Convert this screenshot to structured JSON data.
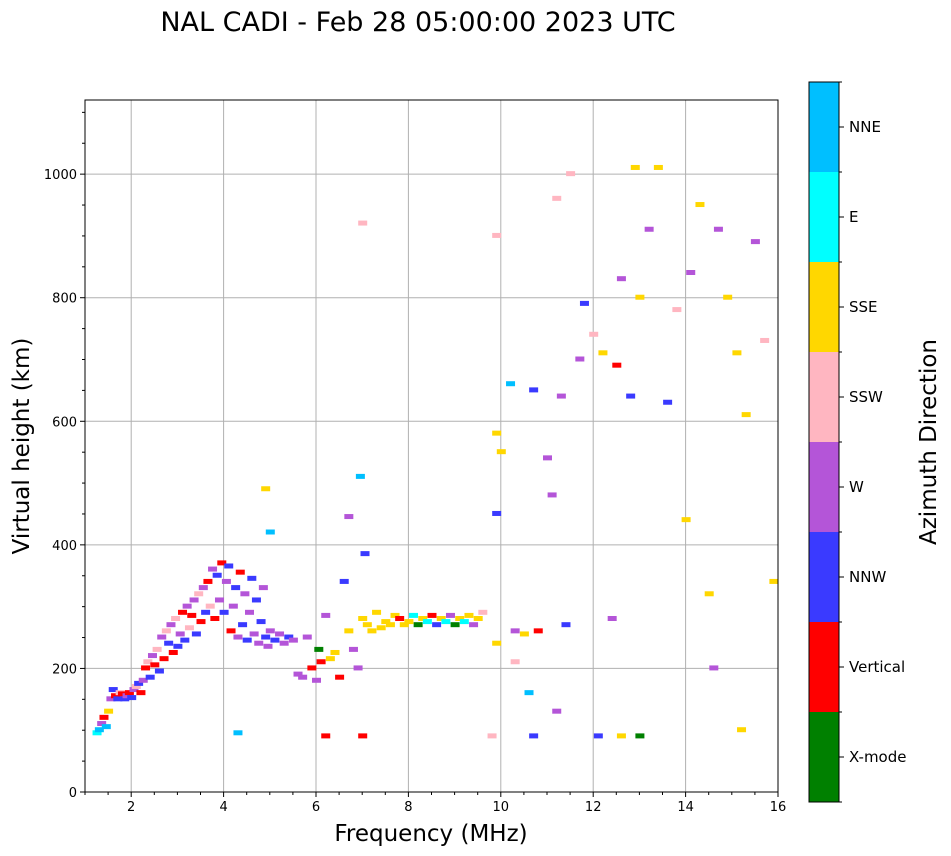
{
  "chart_data": {
    "type": "scatter",
    "title": "NAL CADI - Feb 28 05:00:00 2023 UTC",
    "xlabel": "Frequency (MHz)",
    "ylabel": "Virtual height (km)",
    "xlim": [
      1,
      16
    ],
    "ylim": [
      0,
      1120
    ],
    "xticks": [
      2,
      4,
      6,
      8,
      10,
      12,
      14,
      16
    ],
    "yticks": [
      0,
      200,
      400,
      600,
      800,
      1000
    ],
    "grid": true,
    "colorbar": {
      "label": "Azimuth Direction",
      "categories": [
        {
          "name": "X-mode",
          "color": "#008000"
        },
        {
          "name": "Vertical",
          "color": "#ff0000"
        },
        {
          "name": "NNW",
          "color": "#3a3aff"
        },
        {
          "name": "W",
          "color": "#b455d8"
        },
        {
          "name": "SSW",
          "color": "#ffb6c1"
        },
        {
          "name": "SSE",
          "color": "#ffd700"
        },
        {
          "name": "E",
          "color": "#00ffff"
        },
        {
          "name": "NNE",
          "color": "#00bfff"
        }
      ]
    },
    "points": [
      [
        1.25,
        95,
        "E"
      ],
      [
        1.3,
        100,
        "NNE"
      ],
      [
        1.35,
        110,
        "W"
      ],
      [
        1.4,
        120,
        "Vertical"
      ],
      [
        1.45,
        105,
        "NNE"
      ],
      [
        1.5,
        130,
        "SSE"
      ],
      [
        1.55,
        150,
        "W"
      ],
      [
        1.6,
        165,
        "NNW"
      ],
      [
        1.65,
        155,
        "Vertical"
      ],
      [
        1.7,
        150,
        "NNW"
      ],
      [
        1.75,
        160,
        "SSW"
      ],
      [
        1.8,
        158,
        "Vertical"
      ],
      [
        1.85,
        150,
        "NNW"
      ],
      [
        1.9,
        155,
        "W"
      ],
      [
        1.95,
        160,
        "Vertical"
      ],
      [
        2.0,
        152,
        "NNW"
      ],
      [
        2.05,
        165,
        "W"
      ],
      [
        2.1,
        170,
        "SSW"
      ],
      [
        2.15,
        175,
        "NNW"
      ],
      [
        2.2,
        160,
        "Vertical"
      ],
      [
        2.25,
        180,
        "W"
      ],
      [
        2.3,
        200,
        "Vertical"
      ],
      [
        2.35,
        210,
        "SSW"
      ],
      [
        2.4,
        185,
        "NNW"
      ],
      [
        2.45,
        220,
        "W"
      ],
      [
        2.5,
        205,
        "Vertical"
      ],
      [
        2.55,
        230,
        "SSW"
      ],
      [
        2.6,
        195,
        "NNW"
      ],
      [
        2.65,
        250,
        "W"
      ],
      [
        2.7,
        215,
        "Vertical"
      ],
      [
        2.75,
        260,
        "SSW"
      ],
      [
        2.8,
        240,
        "NNW"
      ],
      [
        2.85,
        270,
        "W"
      ],
      [
        2.9,
        225,
        "Vertical"
      ],
      [
        2.95,
        280,
        "SSW"
      ],
      [
        3.0,
        235,
        "NNW"
      ],
      [
        3.05,
        255,
        "W"
      ],
      [
        3.1,
        290,
        "Vertical"
      ],
      [
        3.15,
        245,
        "NNW"
      ],
      [
        3.2,
        300,
        "W"
      ],
      [
        3.25,
        265,
        "SSW"
      ],
      [
        3.3,
        285,
        "Vertical"
      ],
      [
        3.35,
        310,
        "W"
      ],
      [
        3.4,
        255,
        "NNW"
      ],
      [
        3.45,
        320,
        "SSW"
      ],
      [
        3.5,
        275,
        "Vertical"
      ],
      [
        3.55,
        330,
        "W"
      ],
      [
        3.6,
        290,
        "NNW"
      ],
      [
        3.65,
        340,
        "Vertical"
      ],
      [
        3.7,
        300,
        "SSW"
      ],
      [
        3.75,
        360,
        "W"
      ],
      [
        3.8,
        280,
        "Vertical"
      ],
      [
        3.85,
        350,
        "NNW"
      ],
      [
        3.9,
        310,
        "W"
      ],
      [
        3.95,
        370,
        "Vertical"
      ],
      [
        4.0,
        290,
        "NNW"
      ],
      [
        4.05,
        340,
        "W"
      ],
      [
        4.1,
        365,
        "NNW"
      ],
      [
        4.15,
        260,
        "Vertical"
      ],
      [
        4.2,
        300,
        "W"
      ],
      [
        4.25,
        330,
        "NNW"
      ],
      [
        4.3,
        250,
        "W"
      ],
      [
        4.35,
        355,
        "Vertical"
      ],
      [
        4.4,
        270,
        "NNW"
      ],
      [
        4.45,
        320,
        "W"
      ],
      [
        4.5,
        245,
        "NNW"
      ],
      [
        4.55,
        290,
        "W"
      ],
      [
        4.6,
        345,
        "NNW"
      ],
      [
        4.65,
        255,
        "W"
      ],
      [
        4.7,
        310,
        "NNW"
      ],
      [
        4.75,
        240,
        "W"
      ],
      [
        4.8,
        275,
        "NNW"
      ],
      [
        4.85,
        330,
        "W"
      ],
      [
        4.9,
        250,
        "NNW"
      ],
      [
        4.95,
        235,
        "W"
      ],
      [
        5.0,
        260,
        "W"
      ],
      [
        5.1,
        245,
        "NNW"
      ],
      [
        5.2,
        255,
        "W"
      ],
      [
        5.3,
        240,
        "W"
      ],
      [
        5.4,
        250,
        "NNW"
      ],
      [
        5.5,
        245,
        "W"
      ],
      [
        5.6,
        190,
        "W"
      ],
      [
        5.7,
        185,
        "W"
      ],
      [
        5.8,
        250,
        "W"
      ],
      [
        5.9,
        200,
        "Vertical"
      ],
      [
        6.0,
        180,
        "W"
      ],
      [
        6.05,
        230,
        "X-mode"
      ],
      [
        6.1,
        210,
        "Vertical"
      ],
      [
        6.2,
        285,
        "W"
      ],
      [
        6.3,
        215,
        "SSE"
      ],
      [
        6.4,
        225,
        "SSE"
      ],
      [
        6.5,
        185,
        "Vertical"
      ],
      [
        6.6,
        340,
        "NNW"
      ],
      [
        6.7,
        260,
        "SSE"
      ],
      [
        6.8,
        230,
        "W"
      ],
      [
        6.9,
        200,
        "W"
      ],
      [
        7.0,
        280,
        "SSE"
      ],
      [
        7.05,
        385,
        "NNW"
      ],
      [
        7.1,
        270,
        "SSE"
      ],
      [
        7.2,
        260,
        "SSE"
      ],
      [
        7.3,
        290,
        "SSE"
      ],
      [
        7.4,
        265,
        "SSE"
      ],
      [
        7.5,
        275,
        "SSE"
      ],
      [
        7.6,
        270,
        "SSE"
      ],
      [
        7.7,
        285,
        "SSE"
      ],
      [
        7.8,
        280,
        "Vertical"
      ],
      [
        7.9,
        270,
        "SSE"
      ],
      [
        8.0,
        275,
        "SSE"
      ],
      [
        8.1,
        285,
        "E"
      ],
      [
        8.2,
        270,
        "X-mode"
      ],
      [
        8.3,
        280,
        "SSE"
      ],
      [
        8.4,
        275,
        "E"
      ],
      [
        8.5,
        285,
        "Vertical"
      ],
      [
        8.6,
        270,
        "NNW"
      ],
      [
        8.7,
        280,
        "SSE"
      ],
      [
        8.8,
        275,
        "E"
      ],
      [
        8.9,
        285,
        "W"
      ],
      [
        9.0,
        270,
        "X-mode"
      ],
      [
        9.1,
        280,
        "SSE"
      ],
      [
        9.2,
        275,
        "E"
      ],
      [
        9.3,
        285,
        "SSE"
      ],
      [
        9.4,
        270,
        "W"
      ],
      [
        9.5,
        280,
        "SSE"
      ],
      [
        9.6,
        290,
        "SSW"
      ],
      [
        10.0,
        550,
        "SSE"
      ],
      [
        10.2,
        660,
        "NNE"
      ],
      [
        10.3,
        260,
        "W"
      ],
      [
        10.5,
        255,
        "SSE"
      ],
      [
        10.7,
        650,
        "NNW"
      ],
      [
        10.8,
        260,
        "Vertical"
      ],
      [
        11.0,
        540,
        "W"
      ],
      [
        11.1,
        480,
        "W"
      ],
      [
        11.2,
        960,
        "SSW"
      ],
      [
        11.3,
        640,
        "W"
      ],
      [
        11.4,
        270,
        "NNW"
      ],
      [
        11.5,
        1000,
        "SSW"
      ],
      [
        11.7,
        700,
        "W"
      ],
      [
        11.8,
        790,
        "NNW"
      ],
      [
        12.0,
        740,
        "SSW"
      ],
      [
        12.2,
        710,
        "SSE"
      ],
      [
        12.4,
        280,
        "W"
      ],
      [
        12.5,
        690,
        "Vertical"
      ],
      [
        12.6,
        830,
        "W"
      ],
      [
        12.8,
        640,
        "NNW"
      ],
      [
        12.9,
        1010,
        "SSE"
      ],
      [
        13.0,
        800,
        "SSE"
      ],
      [
        13.2,
        910,
        "W"
      ],
      [
        13.4,
        1010,
        "SSE"
      ],
      [
        13.6,
        630,
        "NNW"
      ],
      [
        13.8,
        780,
        "SSW"
      ],
      [
        14.0,
        440,
        "SSE"
      ],
      [
        14.1,
        840,
        "W"
      ],
      [
        14.3,
        950,
        "SSE"
      ],
      [
        14.5,
        320,
        "SSE"
      ],
      [
        14.7,
        910,
        "W"
      ],
      [
        14.9,
        800,
        "SSE"
      ],
      [
        15.1,
        710,
        "SSE"
      ],
      [
        15.3,
        610,
        "SSE"
      ],
      [
        15.5,
        890,
        "W"
      ],
      [
        15.7,
        730,
        "SSW"
      ],
      [
        15.9,
        340,
        "SSE"
      ],
      [
        15.2,
        100,
        "SSE"
      ],
      [
        14.6,
        200,
        "W"
      ],
      [
        13.0,
        90,
        "X-mode"
      ],
      [
        12.6,
        90,
        "SSE"
      ],
      [
        12.1,
        90,
        "NNW"
      ],
      [
        11.2,
        130,
        "W"
      ],
      [
        10.7,
        90,
        "NNW"
      ],
      [
        10.6,
        160,
        "NNE"
      ],
      [
        10.3,
        210,
        "SSW"
      ],
      [
        9.9,
        240,
        "SSE"
      ],
      [
        9.8,
        90,
        "SSW"
      ],
      [
        9.9,
        450,
        "NNW"
      ],
      [
        9.9,
        580,
        "SSE"
      ],
      [
        9.9,
        900,
        "SSW"
      ],
      [
        7.0,
        920,
        "SSW"
      ],
      [
        6.95,
        510,
        "NNE"
      ],
      [
        6.7,
        445,
        "W"
      ],
      [
        5.0,
        420,
        "NNE"
      ],
      [
        4.9,
        490,
        "SSE"
      ],
      [
        4.3,
        95,
        "NNE"
      ],
      [
        6.2,
        90,
        "Vertical"
      ],
      [
        7.0,
        90,
        "Vertical"
      ]
    ]
  }
}
